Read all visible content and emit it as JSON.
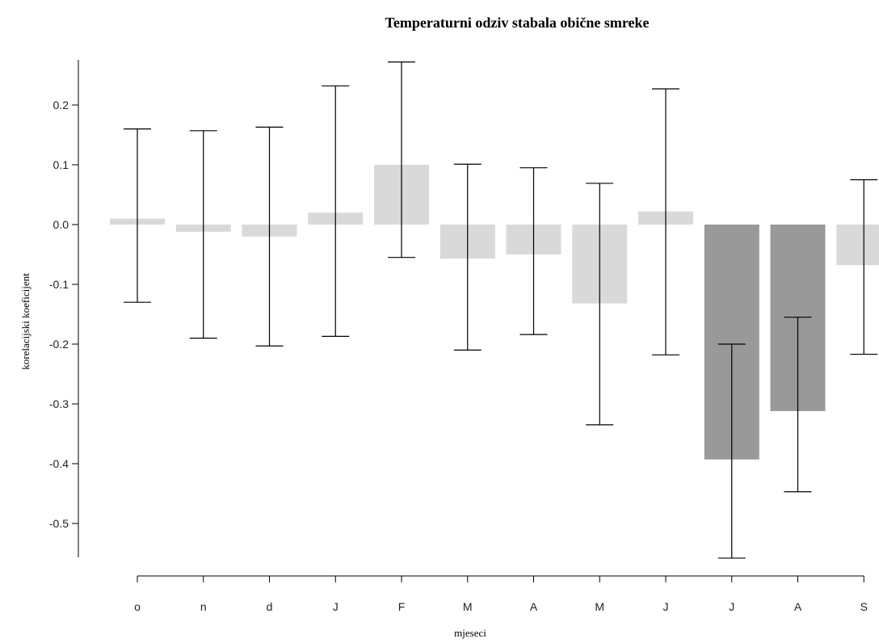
{
  "chart_data": {
    "type": "bar",
    "title": "Temperaturni odziv stabala obične smreke",
    "xlabel": "mjeseci",
    "ylabel": "korelacijski koeficijent",
    "categories": [
      "o",
      "n",
      "d",
      "J",
      "F",
      "M",
      "A",
      "M",
      "J",
      "J",
      "A",
      "S"
    ],
    "values": [
      0.01,
      -0.012,
      -0.02,
      0.02,
      0.1,
      -0.057,
      -0.05,
      -0.132,
      0.022,
      -0.393,
      -0.312,
      -0.068
    ],
    "ci_lower": [
      -0.13,
      -0.19,
      -0.203,
      -0.187,
      -0.055,
      -0.21,
      -0.184,
      -0.335,
      -0.218,
      -0.558,
      -0.447,
      -0.217
    ],
    "ci_upper": [
      0.16,
      0.157,
      0.163,
      0.232,
      0.272,
      0.101,
      0.095,
      0.069,
      0.227,
      -0.2,
      -0.155,
      0.075
    ],
    "significant": [
      false,
      false,
      false,
      false,
      false,
      false,
      false,
      false,
      false,
      true,
      true,
      false
    ],
    "colors": {
      "normal": "#d9d9d9",
      "significant": "#999999"
    },
    "yticks": [
      -0.5,
      -0.4,
      -0.3,
      -0.2,
      -0.1,
      0.0,
      0.1,
      0.2
    ],
    "ytick_labels": [
      "-0.5",
      "-0.4",
      "-0.3",
      "-0.2",
      "-0.1",
      "0.0",
      "0.1",
      "0.2"
    ],
    "ylim": [
      -0.56,
      0.27
    ],
    "grid": false,
    "legend": "none"
  }
}
